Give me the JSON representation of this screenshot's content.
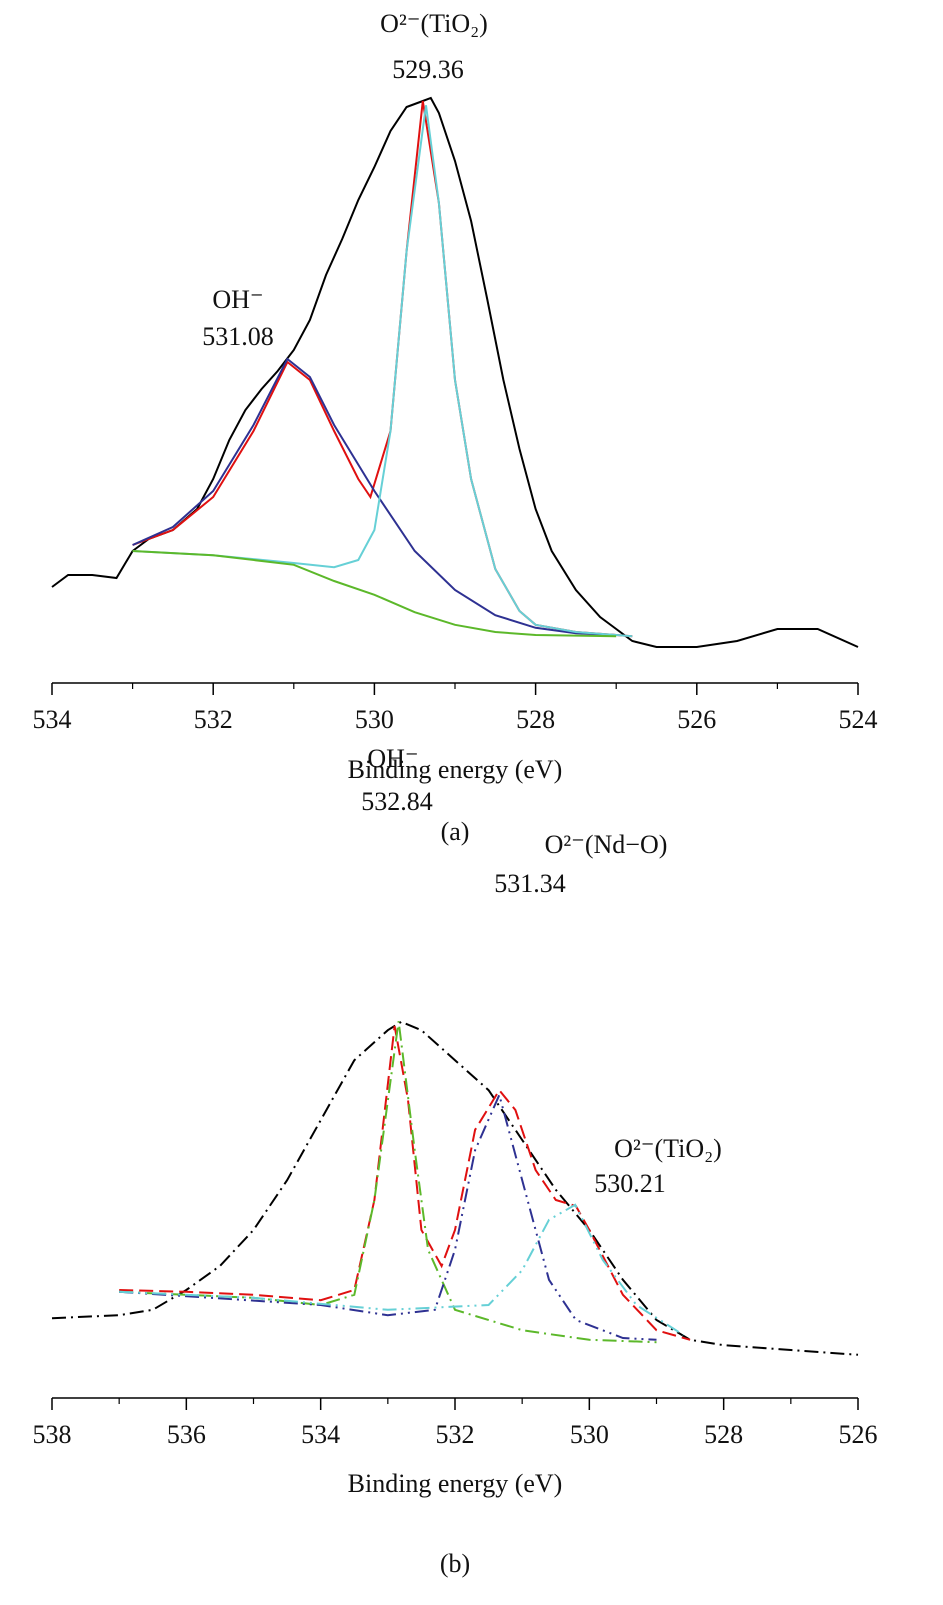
{
  "chart_data": [
    {
      "type": "line",
      "xlabel": "Binding energy (eV)",
      "caption": "(a)",
      "reverse_x": true,
      "xlim": [
        534,
        524
      ],
      "xticks": [
        534,
        532,
        530,
        528,
        526,
        524
      ],
      "ylim": [
        0,
        100
      ],
      "annotations": [
        "O²⁻(TiO₂)",
        "529.36",
        "OH⁻",
        "531.08"
      ],
      "series": [
        {
          "color": "#000000",
          "dash": "solid",
          "x": [
            534,
            533.8,
            533.5,
            533.2,
            533,
            532.8,
            532.5,
            532.2,
            532,
            531.8,
            531.6,
            531.4,
            531.2,
            531,
            530.8,
            530.6,
            530.4,
            530.2,
            530,
            529.8,
            529.6,
            529.4,
            529.3,
            529.2,
            529,
            528.8,
            528.6,
            528.4,
            528.2,
            528,
            527.8,
            527.5,
            527.2,
            527,
            526.8,
            526.5,
            526,
            525.5,
            525,
            524.5,
            524
          ],
          "values": [
            16,
            18,
            18,
            17.5,
            22,
            24,
            25.5,
            29,
            34,
            40.5,
            45.5,
            49,
            52,
            55.5,
            60.5,
            68,
            74,
            80.5,
            86,
            92,
            96,
            97,
            97.5,
            95,
            87,
            77,
            64,
            50.5,
            39,
            29,
            22,
            15.5,
            11,
            9,
            7,
            6,
            6,
            7,
            9,
            9,
            6
          ]
        },
        {
          "color": "#e01010",
          "dash": "solid",
          "x": [
            533,
            532.5,
            532,
            531.5,
            531.08,
            530.8,
            530.5,
            530.2,
            530.05,
            529.8,
            529.6,
            529.4,
            529.2,
            529,
            528.8,
            528.5,
            528.2,
            528,
            527.5,
            527,
            526.8
          ],
          "values": [
            23,
            25.5,
            31,
            42,
            53.5,
            50.5,
            42,
            34,
            31,
            42,
            72,
            97,
            80,
            50.5,
            34,
            19,
            12,
            9.7,
            8.5,
            8,
            7.8
          ]
        },
        {
          "color": "#2e3192",
          "dash": "solid",
          "x": [
            533,
            532.5,
            532,
            531.5,
            531.08,
            530.8,
            530.5,
            530,
            529.5,
            529,
            528.5,
            528,
            527.5,
            527
          ],
          "values": [
            23,
            26,
            32,
            43,
            54,
            51,
            43,
            32,
            22,
            15.5,
            11.3,
            9.2,
            8.3,
            8
          ]
        },
        {
          "color": "#66d0d6",
          "dash": "solid",
          "x": [
            533,
            532,
            531,
            530.5,
            530.2,
            530,
            529.8,
            529.6,
            529.36,
            529.2,
            529,
            528.8,
            528.5,
            528.2,
            528,
            527.5,
            527,
            526.8
          ],
          "values": [
            22,
            21.3,
            20,
            19.3,
            20.5,
            25.5,
            42,
            72,
            96.3,
            80,
            50.5,
            34,
            19,
            12,
            9.7,
            8.5,
            8,
            7.8
          ]
        },
        {
          "color": "#5cb82a",
          "dash": "solid",
          "x": [
            533,
            532,
            531,
            530.5,
            530,
            529.5,
            529,
            528.5,
            528,
            527
          ],
          "values": [
            22,
            21.3,
            19.7,
            17,
            14.7,
            11.8,
            9.7,
            8.5,
            8,
            7.8
          ]
        }
      ]
    },
    {
      "type": "line",
      "xlabel": "Binding energy (eV)",
      "caption": "(b)",
      "reverse_x": true,
      "xlim": [
        538,
        526
      ],
      "xticks": [
        538,
        536,
        534,
        532,
        530,
        528,
        526
      ],
      "ylim": [
        0,
        100
      ],
      "annotations": [
        "OH⁻",
        "532.84",
        "O²⁻(Nd−O)",
        "531.34",
        "O²⁻(TiO₂)",
        "530.21"
      ],
      "series": [
        {
          "color": "#000000",
          "dash": "dash-dot",
          "x": [
            538,
            537,
            536.5,
            536,
            535.5,
            535,
            534.5,
            534,
            533.5,
            533,
            532.8,
            532.5,
            532,
            531.5,
            531,
            530.5,
            530,
            529.5,
            529,
            528.5,
            528,
            527,
            526
          ],
          "values": [
            13.3,
            13.8,
            14.7,
            18,
            22,
            28,
            36.3,
            46.3,
            56.3,
            61.3,
            62.7,
            61.3,
            56.3,
            51.3,
            43,
            34.7,
            28,
            19.7,
            13,
            9.7,
            8.8,
            8,
            7.2
          ]
        },
        {
          "color": "#e01010",
          "dash": "dashed",
          "x": [
            537,
            536,
            535,
            534,
            533.5,
            533.2,
            532.9,
            532.7,
            532.5,
            532.2,
            532,
            531.7,
            531.34,
            531.1,
            530.8,
            530.5,
            530.2,
            530,
            529.5,
            529,
            528.5
          ],
          "values": [
            18,
            17.7,
            17.2,
            16.3,
            18,
            33,
            62,
            49.7,
            28,
            22,
            28,
            44.7,
            51.3,
            48,
            38,
            33,
            32,
            28,
            17.2,
            11.3,
            9.7
          ]
        },
        {
          "color": "#5cb82a",
          "dash": "dash-dot",
          "x": [
            537,
            535,
            534,
            533.5,
            533.2,
            532.84,
            532.6,
            532.4,
            532,
            531,
            530,
            529
          ],
          "values": [
            17.7,
            16.7,
            15.5,
            17.2,
            33,
            62.8,
            41.3,
            24.7,
            14.7,
            11.3,
            9.7,
            9.3
          ]
        },
        {
          "color": "#2e3192",
          "dash": "dash-dot-dot",
          "x": [
            537,
            534,
            533,
            532.3,
            532,
            531.7,
            531.34,
            531,
            530.6,
            530.2,
            529.5,
            529
          ],
          "values": [
            17.7,
            15.5,
            13.8,
            14.7,
            24.7,
            41.3,
            50.5,
            36.3,
            19.7,
            13,
            10,
            9.7
          ]
        },
        {
          "color": "#66d0d6",
          "dash": "dash-dot-dot",
          "x": [
            537,
            535,
            533,
            531.5,
            531,
            530.6,
            530.21,
            529.8,
            529.3,
            528.6
          ],
          "values": [
            17.7,
            16.7,
            14.7,
            15.5,
            21.3,
            29.7,
            32.2,
            23,
            15.5,
            10.5
          ]
        }
      ]
    }
  ]
}
